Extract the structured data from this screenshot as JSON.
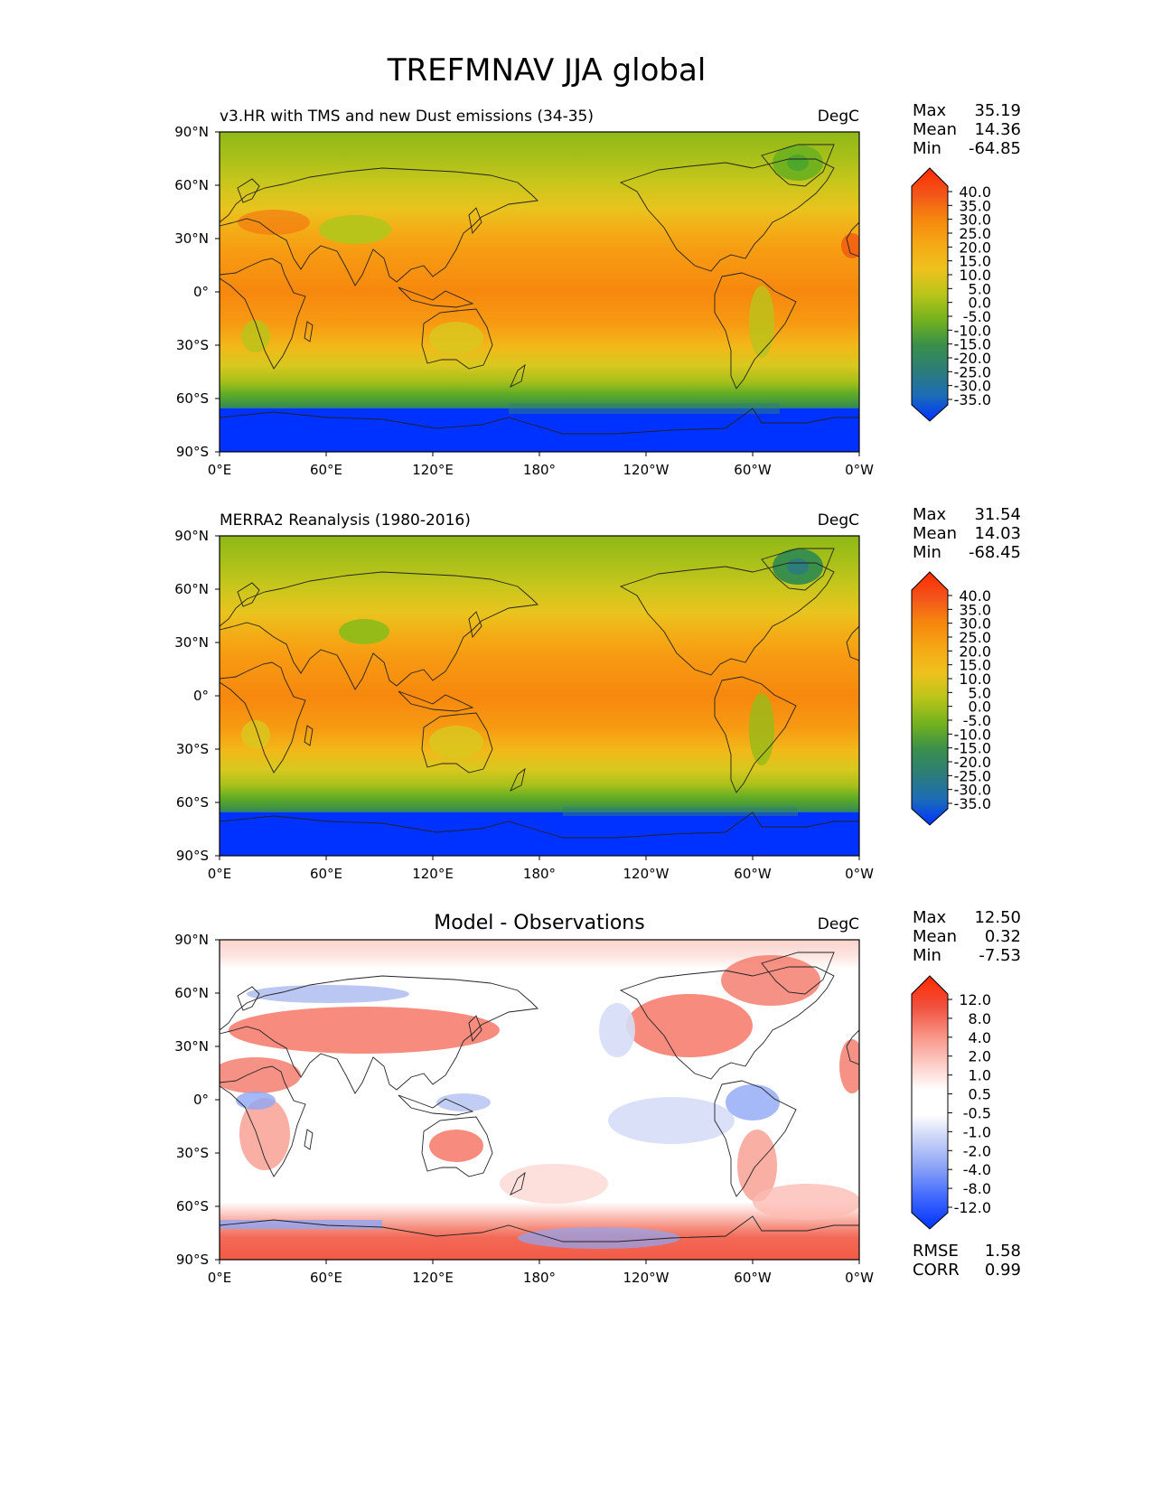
{
  "title": "TREFMNAV JJA global",
  "x_ticks": [
    "0°E",
    "60°E",
    "120°E",
    "180°",
    "120°W",
    "60°W",
    "0°W"
  ],
  "y_ticks": [
    "90°N",
    "60°N",
    "30°N",
    "0°",
    "30°S",
    "60°S",
    "90°S"
  ],
  "stat_labels": {
    "max": "Max",
    "mean": "Mean",
    "min": "Min",
    "rmse": "RMSE",
    "corr": "CORR"
  },
  "panels": [
    {
      "title": "v3.HR with TMS and new Dust emissions (34-35)",
      "units": "DegC",
      "stats": {
        "max": "35.19",
        "mean": "14.36",
        "min": "-64.85"
      },
      "colorbar_labels": [
        "40.0",
        "35.0",
        "30.0",
        "25.0",
        "20.0",
        "15.0",
        "10.0",
        "5.0",
        "0.0",
        "-5.0",
        "-10.0",
        "-15.0",
        "-20.0",
        "-25.0",
        "-30.0",
        "-35.0"
      ]
    },
    {
      "title": "MERRA2 Reanalysis (1980-2016)",
      "units": "DegC",
      "stats": {
        "max": "31.54",
        "mean": "14.03",
        "min": "-68.45"
      },
      "colorbar_labels": [
        "40.0",
        "35.0",
        "30.0",
        "25.0",
        "20.0",
        "15.0",
        "10.0",
        "5.0",
        "0.0",
        "-5.0",
        "-10.0",
        "-15.0",
        "-20.0",
        "-25.0",
        "-30.0",
        "-35.0"
      ]
    },
    {
      "title": "Model - Observations",
      "units": "DegC",
      "stats": {
        "max": "12.50",
        "mean": "0.32",
        "min": "-7.53"
      },
      "colorbar_labels": [
        "12.0",
        "8.0",
        "4.0",
        "2.0",
        "1.0",
        "0.5",
        "-0.5",
        "-1.0",
        "-2.0",
        "-4.0",
        "-8.0",
        "-12.0"
      ],
      "metrics": {
        "rmse": "1.58",
        "corr": "0.99"
      }
    }
  ],
  "colors": {
    "temperature_scale": [
      "#0032ff",
      "#1c6cb8",
      "#2d7d7a",
      "#3a8f4a",
      "#4ea62c",
      "#72b21e",
      "#95bb18",
      "#b8c41a",
      "#d8c81f",
      "#eec21d",
      "#f4ad16",
      "#f79a12",
      "#f7860e",
      "#f5700f",
      "#f25812",
      "#f03c14",
      "#ff2a00"
    ],
    "difference_scale": [
      "#0033ff",
      "#3d66ff",
      "#6688ff",
      "#8fa6f5",
      "#b3c1f2",
      "#d6ddf7",
      "#ffffff",
      "#fddcd8",
      "#fcbcb4",
      "#f99b8e",
      "#f47767",
      "#f0503d",
      "#ff2a00"
    ],
    "ocean_warm": "#f7860e",
    "polar": "#0032ff"
  },
  "chart_data": [
    {
      "type": "heatmap",
      "title": "v3.HR with TMS and new Dust emissions (34-35)",
      "units": "DegC",
      "xlim": [
        0,
        360
      ],
      "ylim": [
        -90,
        90
      ],
      "levels": [
        -35,
        -30,
        -25,
        -20,
        -15,
        -10,
        -5,
        0,
        5,
        10,
        15,
        20,
        25,
        30,
        35,
        40
      ],
      "zonal_profile": {
        "lat": [
          90,
          75,
          65,
          55,
          45,
          35,
          25,
          15,
          5,
          -5,
          -15,
          -25,
          -35,
          -45,
          -55,
          -62,
          -68,
          -72,
          -80,
          -90
        ],
        "value": [
          0,
          3,
          8,
          10,
          14,
          20,
          26,
          28,
          28,
          27,
          25,
          21,
          16,
          11,
          5,
          -1,
          -10,
          -40,
          -60,
          -60
        ]
      },
      "stats": {
        "max": 35.19,
        "mean": 14.36,
        "min": -64.85
      }
    },
    {
      "type": "heatmap",
      "title": "MERRA2 Reanalysis (1980-2016)",
      "units": "DegC",
      "xlim": [
        0,
        360
      ],
      "ylim": [
        -90,
        90
      ],
      "levels": [
        -35,
        -30,
        -25,
        -20,
        -15,
        -10,
        -5,
        0,
        5,
        10,
        15,
        20,
        25,
        30,
        35,
        40
      ],
      "zonal_profile": {
        "lat": [
          90,
          75,
          65,
          55,
          45,
          35,
          25,
          15,
          5,
          -5,
          -15,
          -25,
          -35,
          -45,
          -55,
          -62,
          -68,
          -72,
          -80,
          -90
        ],
        "value": [
          -2,
          2,
          7,
          10,
          14,
          20,
          25,
          27,
          27,
          26,
          24,
          20,
          15,
          10,
          4,
          -2,
          -11,
          -45,
          -62,
          -62
        ]
      },
      "stats": {
        "max": 31.54,
        "mean": 14.03,
        "min": -68.45
      }
    },
    {
      "type": "heatmap",
      "title": "Model - Observations",
      "units": "DegC",
      "xlim": [
        0,
        360
      ],
      "ylim": [
        -90,
        90
      ],
      "levels": [
        -12,
        -8,
        -4,
        -2,
        -1,
        -0.5,
        0.5,
        1,
        2,
        4,
        8,
        12
      ],
      "zonal_profile": {
        "lat": [
          90,
          80,
          70,
          60,
          50,
          40,
          30,
          20,
          10,
          0,
          -10,
          -20,
          -30,
          -40,
          -50,
          -60,
          -70,
          -80,
          -90
        ],
        "value": [
          1.2,
          1.5,
          0.8,
          0.3,
          1.8,
          2.5,
          1.2,
          0.3,
          0.1,
          -0.3,
          -0.4,
          0.1,
          0.4,
          0.6,
          0.3,
          1.0,
          3.0,
          5.0,
          5.0
        ]
      },
      "stats": {
        "max": 12.5,
        "mean": 0.32,
        "min": -7.53
      },
      "rmse": 1.58,
      "corr": 0.99
    }
  ]
}
